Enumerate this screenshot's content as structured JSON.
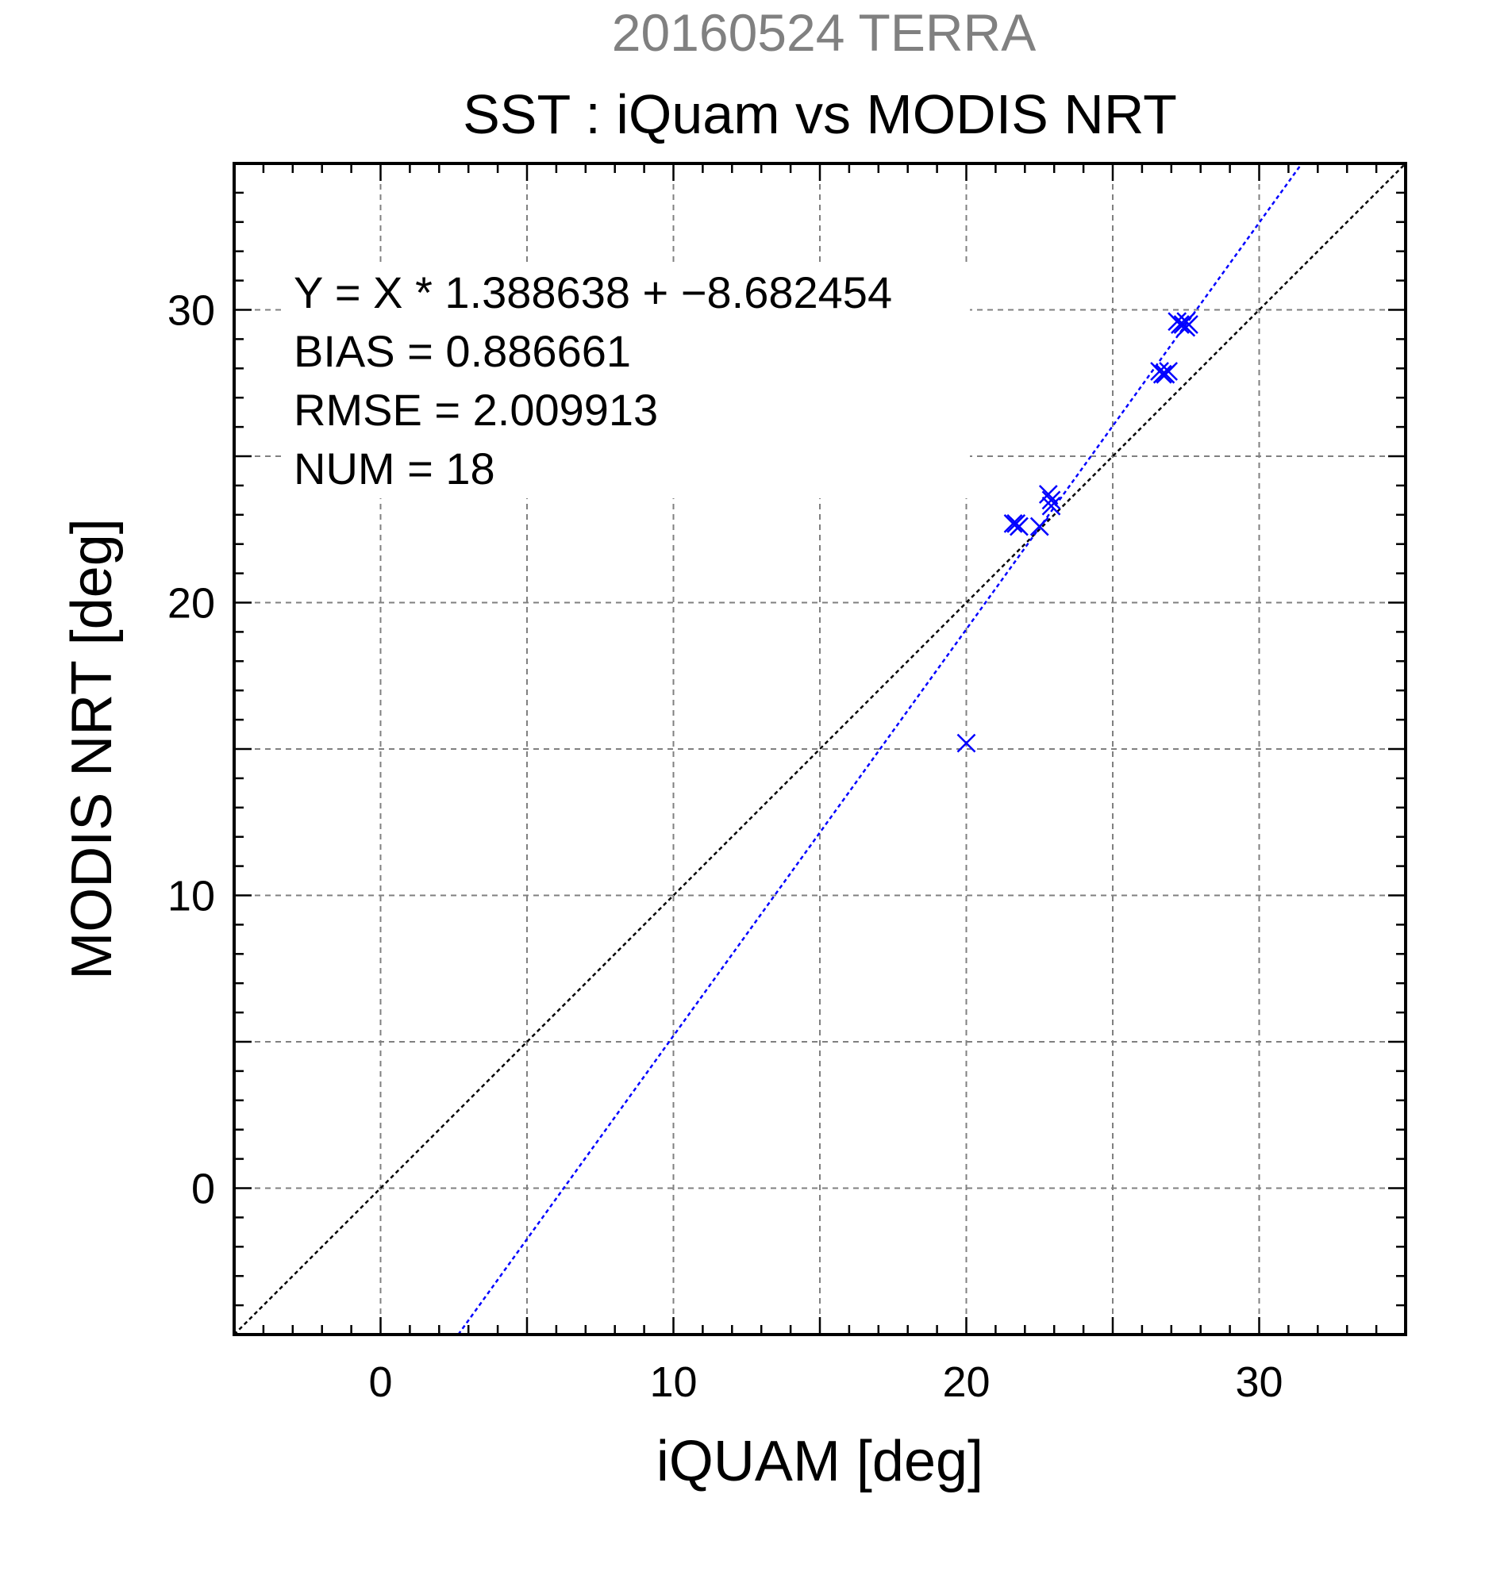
{
  "chart_data": {
    "type": "scatter",
    "supertitle": "20160524 TERRA",
    "title": "SST : iQuam vs MODIS NRT",
    "xlabel": "iQUAM [deg]",
    "ylabel": "MODIS NRT [deg]",
    "xlim": [
      -5,
      35
    ],
    "ylim": [
      -5,
      35
    ],
    "x_ticks": [
      0,
      10,
      20,
      30
    ],
    "y_ticks": [
      0,
      10,
      20,
      30
    ],
    "grid": true,
    "grid_step": 5,
    "minor_tick_step": 1,
    "stats": {
      "equation": "Y = X * 1.388638 + −8.682454",
      "bias": "BIAS = 0.886661",
      "rmse": "RMSE = 2.009913",
      "num": "NUM = 18"
    },
    "fit_line": {
      "slope": 1.388638,
      "intercept": -8.682454
    },
    "identity_line": {
      "slope": 1,
      "intercept": 0
    },
    "points": [
      {
        "x": 20.0,
        "y": 15.2
      },
      {
        "x": 21.6,
        "y": 22.7
      },
      {
        "x": 21.7,
        "y": 22.7
      },
      {
        "x": 21.8,
        "y": 22.6
      },
      {
        "x": 22.5,
        "y": 22.6
      },
      {
        "x": 22.8,
        "y": 23.7
      },
      {
        "x": 22.9,
        "y": 23.5
      },
      {
        "x": 22.9,
        "y": 23.3
      },
      {
        "x": 26.6,
        "y": 27.9
      },
      {
        "x": 26.7,
        "y": 27.8
      },
      {
        "x": 26.8,
        "y": 27.8
      },
      {
        "x": 26.9,
        "y": 27.9
      },
      {
        "x": 27.2,
        "y": 29.6
      },
      {
        "x": 27.3,
        "y": 29.5
      },
      {
        "x": 27.4,
        "y": 29.5
      },
      {
        "x": 27.5,
        "y": 29.4
      },
      {
        "x": 27.6,
        "y": 29.5
      },
      {
        "x": 27.5,
        "y": 29.6
      }
    ],
    "colors": {
      "points": "#0000ff",
      "fit_line": "#0000ff",
      "identity_line": "#000000",
      "grid": "#808080",
      "supertitle": "#808080",
      "title": "#000000"
    }
  }
}
